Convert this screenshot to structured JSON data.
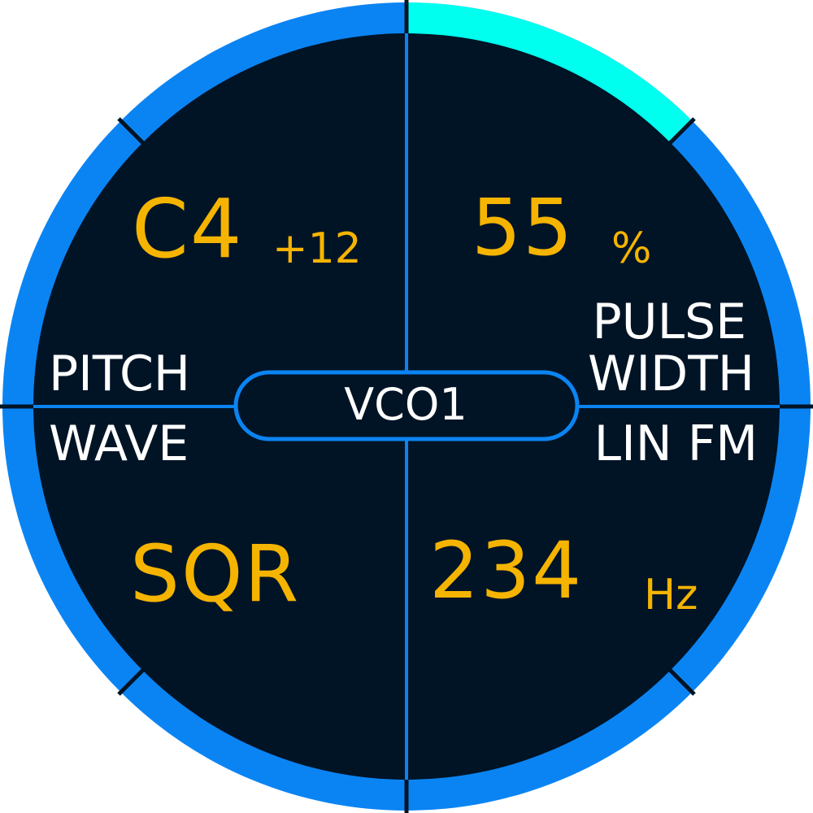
{
  "module": {
    "name": "VCO1"
  },
  "quadrants": {
    "pitch": {
      "label": "PITCH",
      "value": "C4",
      "offset": "+12"
    },
    "pulse_width": {
      "label_line1": "PULSE",
      "label_line2": "WIDTH",
      "value": "55",
      "unit": "%"
    },
    "wave": {
      "label": "WAVE",
      "value": "SQR"
    },
    "lin_fm": {
      "label": "LIN FM",
      "value": "234",
      "unit": "Hz"
    }
  },
  "ring": {
    "highlighted_segment": "pulse-width",
    "colors": {
      "ring": "#0b84f3",
      "highlight": "#00ffee",
      "background": "#001426",
      "divider": "#0b84f3",
      "value": "#f5b400",
      "label": "#ffffff"
    }
  }
}
